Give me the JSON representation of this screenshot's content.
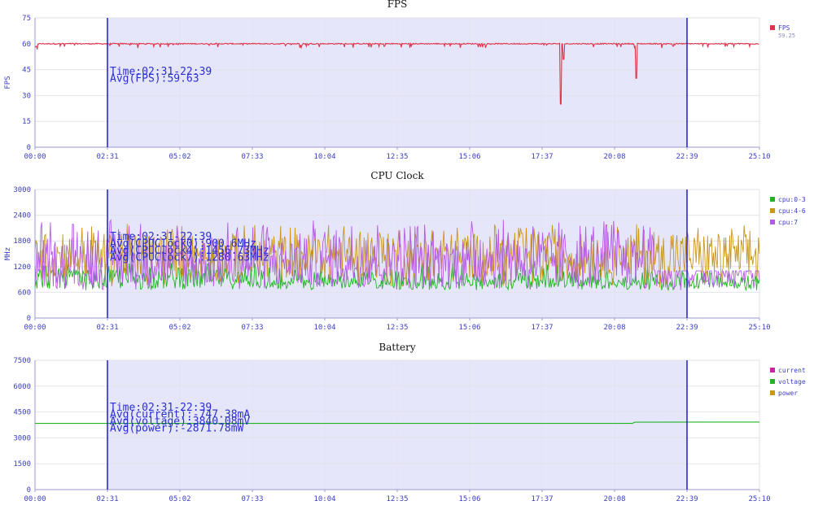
{
  "chart_data": [
    {
      "type": "line",
      "title": "FPS",
      "ylabel": "FPS",
      "ylim": [
        0,
        75
      ],
      "yticks": [
        0,
        15,
        30,
        45,
        60,
        75
      ],
      "xticks": [
        "00:00",
        "02:31",
        "05:02",
        "07:33",
        "10:04",
        "12:35",
        "15:06",
        "17:37",
        "20:08",
        "22:39",
        "25:10"
      ],
      "xlim_seconds": [
        0,
        1510
      ],
      "selection": {
        "start": "02:31",
        "end": "22:39"
      },
      "annotations": [
        "Time:02:31-22:39",
        "Avg(FPS):59.63"
      ],
      "series": [
        {
          "name": "FPS",
          "sublabel": "59.25",
          "color": "#e0324a",
          "baseline": 60,
          "dips": [
            {
              "t": 1096,
              "v": 25
            },
            {
              "t": 1102,
              "v": 51
            },
            {
              "t": 1253,
              "v": 40
            }
          ]
        }
      ],
      "grid": true,
      "legend": "right"
    },
    {
      "type": "line",
      "title": "CPU Clock",
      "ylabel": "MHz",
      "ylim": [
        0,
        3000
      ],
      "yticks": [
        0,
        600,
        1200,
        1800,
        2400,
        3000
      ],
      "xticks": [
        "00:00",
        "02:31",
        "05:02",
        "07:33",
        "10:04",
        "12:35",
        "15:06",
        "17:37",
        "20:08",
        "22:39",
        "25:10"
      ],
      "xlim_seconds": [
        0,
        1510
      ],
      "selection": {
        "start": "02:31",
        "end": "22:39"
      },
      "annotations": [
        "Time:02:31-22:39",
        "Avg(CPUClock0):900.6MHz",
        "Avg(CPUClock4):1456.73MHz",
        "Avg(CPUClock7):1280.63MHz"
      ],
      "series": [
        {
          "name": "cpu:0-3",
          "color": "#22b422",
          "low": 650,
          "high": 1300,
          "mean": 900
        },
        {
          "name": "cpu:4-6",
          "color": "#c8961e",
          "low": 700,
          "high": 2200,
          "mean": 1460
        },
        {
          "name": "cpu:7",
          "color": "#b45ae6",
          "low": 650,
          "high": 2300,
          "mean": 1280
        }
      ],
      "grid": true,
      "legend": "right"
    },
    {
      "type": "line",
      "title": "Battery",
      "ylabel": "",
      "ylim": [
        0,
        7500
      ],
      "yticks": [
        0,
        1500,
        3000,
        4500,
        6000,
        7500
      ],
      "xticks": [
        "00:00",
        "02:31",
        "05:02",
        "07:33",
        "10:04",
        "12:35",
        "15:06",
        "17:37",
        "20:08",
        "22:39",
        "25:10"
      ],
      "xlim_seconds": [
        0,
        1510
      ],
      "selection": {
        "start": "02:31",
        "end": "22:39"
      },
      "annotations": [
        "Time:02:31-22:39",
        "Avg(current):-747.38mA",
        "Avg(voltage):3840.08mV",
        "Avg(power):-2871.78mW"
      ],
      "series": [
        {
          "name": "current",
          "color": "#d21ea0"
        },
        {
          "name": "voltage",
          "color": "#22b422",
          "points": [
            [
              0,
              3840
            ],
            [
              1245,
              3840
            ],
            [
              1250,
              3910
            ],
            [
              1510,
              3920
            ]
          ]
        },
        {
          "name": "power",
          "color": "#c8961e"
        }
      ],
      "grid": true,
      "legend": "right"
    }
  ]
}
